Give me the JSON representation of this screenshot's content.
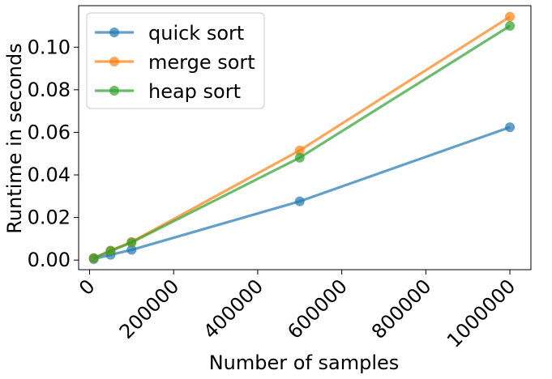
{
  "chart_data": {
    "type": "line",
    "title": "",
    "xlabel": "Number of samples",
    "ylabel": "Runtime in seconds",
    "xlim": [
      -26000,
      1050000
    ],
    "ylim": [
      -0.0045,
      0.1195
    ],
    "x_ticks": [
      0,
      200000,
      400000,
      600000,
      800000,
      1000000
    ],
    "x_tick_labels": [
      "0",
      "200000",
      "400000",
      "600000",
      "800000",
      "1000000"
    ],
    "y_ticks": [
      0.0,
      0.02,
      0.04,
      0.06,
      0.08,
      0.1
    ],
    "y_tick_labels": [
      "0.00",
      "0.02",
      "0.04",
      "0.06",
      "0.08",
      "0.10"
    ],
    "x": [
      10000,
      50000,
      100000,
      500000,
      1000000
    ],
    "series": [
      {
        "name": "quick sort",
        "color": "#1f77b4",
        "values": [
          0.0005,
          0.0025,
          0.0048,
          0.0276,
          0.0624
        ]
      },
      {
        "name": "merge sort",
        "color": "#ff7f0e",
        "values": [
          0.0009,
          0.0045,
          0.0085,
          0.0515,
          0.1143
        ]
      },
      {
        "name": "heap sort",
        "color": "#2ca02c",
        "values": [
          0.0009,
          0.0043,
          0.0083,
          0.0481,
          0.11
        ]
      }
    ],
    "grid": false,
    "legend_position": "upper left"
  }
}
